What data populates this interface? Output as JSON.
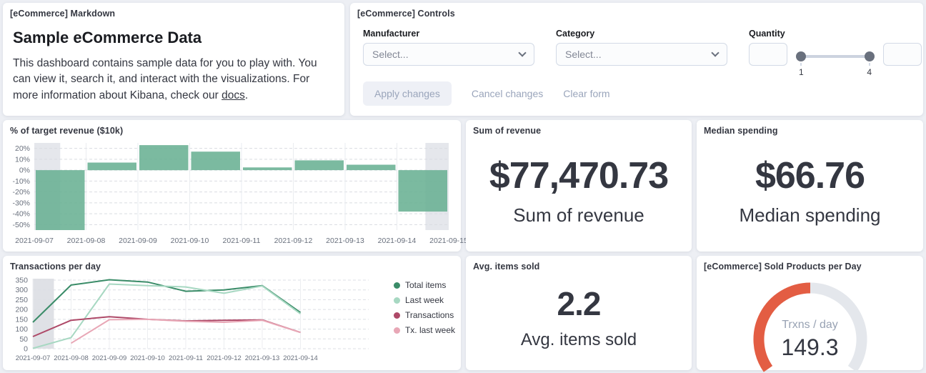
{
  "markdown_panel": {
    "title": "[eCommerce] Markdown",
    "heading": "Sample eCommerce Data",
    "body_before_link": "This dashboard contains sample data for you to play with. You can view it, search it, and interact with the visualizations. For more information about Kibana, check our ",
    "link_text": "docs",
    "body_after_link": "."
  },
  "controls_panel": {
    "title": "[eCommerce] Controls",
    "manufacturer": {
      "label": "Manufacturer",
      "placeholder": "Select..."
    },
    "category": {
      "label": "Category",
      "placeholder": "Select..."
    },
    "quantity": {
      "label": "Quantity",
      "min_value": "",
      "max_value": "",
      "slider_min_label": "1",
      "slider_max_label": "4"
    },
    "buttons": {
      "apply": "Apply changes",
      "cancel": "Cancel changes",
      "clear": "Clear form"
    }
  },
  "sum_revenue_panel": {
    "title": "Sum of revenue",
    "value": "$77,470.73",
    "subtitle": "Sum of revenue"
  },
  "median_spending_panel": {
    "title": "Median spending",
    "value": "$66.76",
    "subtitle": "Median spending"
  },
  "avg_items_panel": {
    "title": "Avg. items sold",
    "value": "2.2",
    "subtitle": "Avg. items sold"
  },
  "chart_data": [
    {
      "id": "target_revenue",
      "type": "bar",
      "title": "% of target revenue ($10k)",
      "categories": [
        "2021-09-07",
        "2021-09-08",
        "2021-09-09",
        "2021-09-10",
        "2021-09-11",
        "2021-09-12",
        "2021-09-13",
        "2021-09-14"
      ],
      "values": [
        -55,
        7,
        23,
        17,
        2.5,
        9,
        5,
        -38
      ],
      "tick_labels": [
        "2021-09-07",
        "2021-09-08",
        "2021-09-09",
        "2021-09-10",
        "2021-09-11",
        "2021-09-12",
        "2021-09-13",
        "2021-09-14",
        "2021-09-15"
      ],
      "yticks": [
        20,
        10,
        0,
        -10,
        -20,
        -30,
        -40,
        -50
      ],
      "ylim": [
        -55,
        25
      ],
      "ylabel_suffix": "%",
      "bar_color": "#69b093",
      "shaded_bands_columns": [
        [
          0,
          0.5
        ],
        [
          7.55,
          8
        ]
      ],
      "grid": true
    },
    {
      "id": "transactions_per_day",
      "type": "line",
      "title": "Transactions per day",
      "x": [
        "2021-09-07",
        "2021-09-08",
        "2021-09-09",
        "2021-09-10",
        "2021-09-11",
        "2021-09-12",
        "2021-09-13",
        "2021-09-14"
      ],
      "series": [
        {
          "name": "Total items",
          "color": "#3a8c68",
          "values": [
            135,
            325,
            352,
            340,
            293,
            300,
            322,
            185
          ]
        },
        {
          "name": "Last week",
          "color": "#a7d8c2",
          "values": [
            2,
            57,
            330,
            322,
            315,
            283,
            320,
            178
          ]
        },
        {
          "name": "Transactions",
          "color": "#ae4968",
          "values": [
            62,
            145,
            163,
            150,
            142,
            145,
            147,
            83
          ]
        },
        {
          "name": "Tx. last week",
          "color": "#e8a7b6",
          "values": [
            null,
            28,
            148,
            150,
            140,
            135,
            145,
            83
          ]
        }
      ],
      "yticks": [
        0,
        50,
        100,
        150,
        200,
        250,
        300,
        350
      ],
      "ylim": [
        0,
        350
      ],
      "shaded_band_columns": [
        0,
        0.55
      ],
      "legend_position": "right",
      "grid": true
    },
    {
      "id": "sold_products_gauge",
      "type": "gauge",
      "title": "[eCommerce] Sold Products per Day",
      "label": "Trxns / day",
      "value": "149.3",
      "fill_ratio": 0.5,
      "fill_color": "#e35d43",
      "track_color": "#e4e7ec"
    }
  ]
}
